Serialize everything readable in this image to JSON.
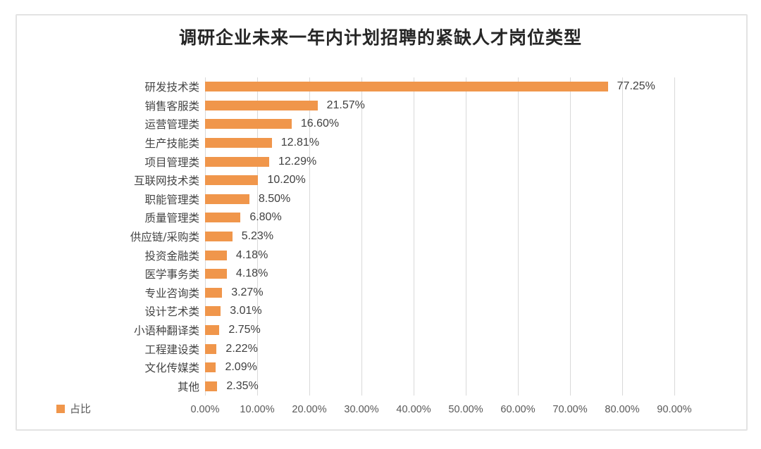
{
  "title": "调研企业未来一年内计划招聘的紧缺人才岗位类型",
  "legend": {
    "label": "占比",
    "swatch_color": "#f0964b"
  },
  "chart_data": {
    "type": "bar",
    "orientation": "horizontal",
    "title": "调研企业未来一年内计划招聘的紧缺人才岗位类型",
    "categories": [
      "研发技术类",
      "销售客服类",
      "运营管理类",
      "生产技能类",
      "项目管理类",
      "互联网技术类",
      "职能管理类",
      "质量管理类",
      "供应链/采购类",
      "投资金融类",
      "医学事务类",
      "专业咨询类",
      "设计艺术类",
      "小语种翻译类",
      "工程建设类",
      "文化传媒类",
      "其他"
    ],
    "values": [
      77.25,
      21.57,
      16.6,
      12.81,
      12.29,
      10.2,
      8.5,
      6.8,
      5.23,
      4.18,
      4.18,
      3.27,
      3.01,
      2.75,
      2.22,
      2.09,
      2.35
    ],
    "value_labels": [
      "77.25%",
      "21.57%",
      "16.60%",
      "12.81%",
      "12.29%",
      "10.20%",
      "8.50%",
      "6.80%",
      "5.23%",
      "4.18%",
      "4.18%",
      "3.27%",
      "3.01%",
      "2.75%",
      "2.22%",
      "2.09%",
      "2.35%"
    ],
    "x_ticks": [
      "0.00%",
      "10.00%",
      "20.00%",
      "30.00%",
      "40.00%",
      "50.00%",
      "60.00%",
      "70.00%",
      "80.00%",
      "90.00%"
    ],
    "x_tick_values": [
      0,
      10,
      20,
      30,
      40,
      50,
      60,
      70,
      80,
      90
    ],
    "xlim": [
      0,
      90
    ],
    "grid": true,
    "bar_color": "#f0964b",
    "legend_entries": [
      "占比"
    ],
    "legend_position": "bottom-left"
  }
}
